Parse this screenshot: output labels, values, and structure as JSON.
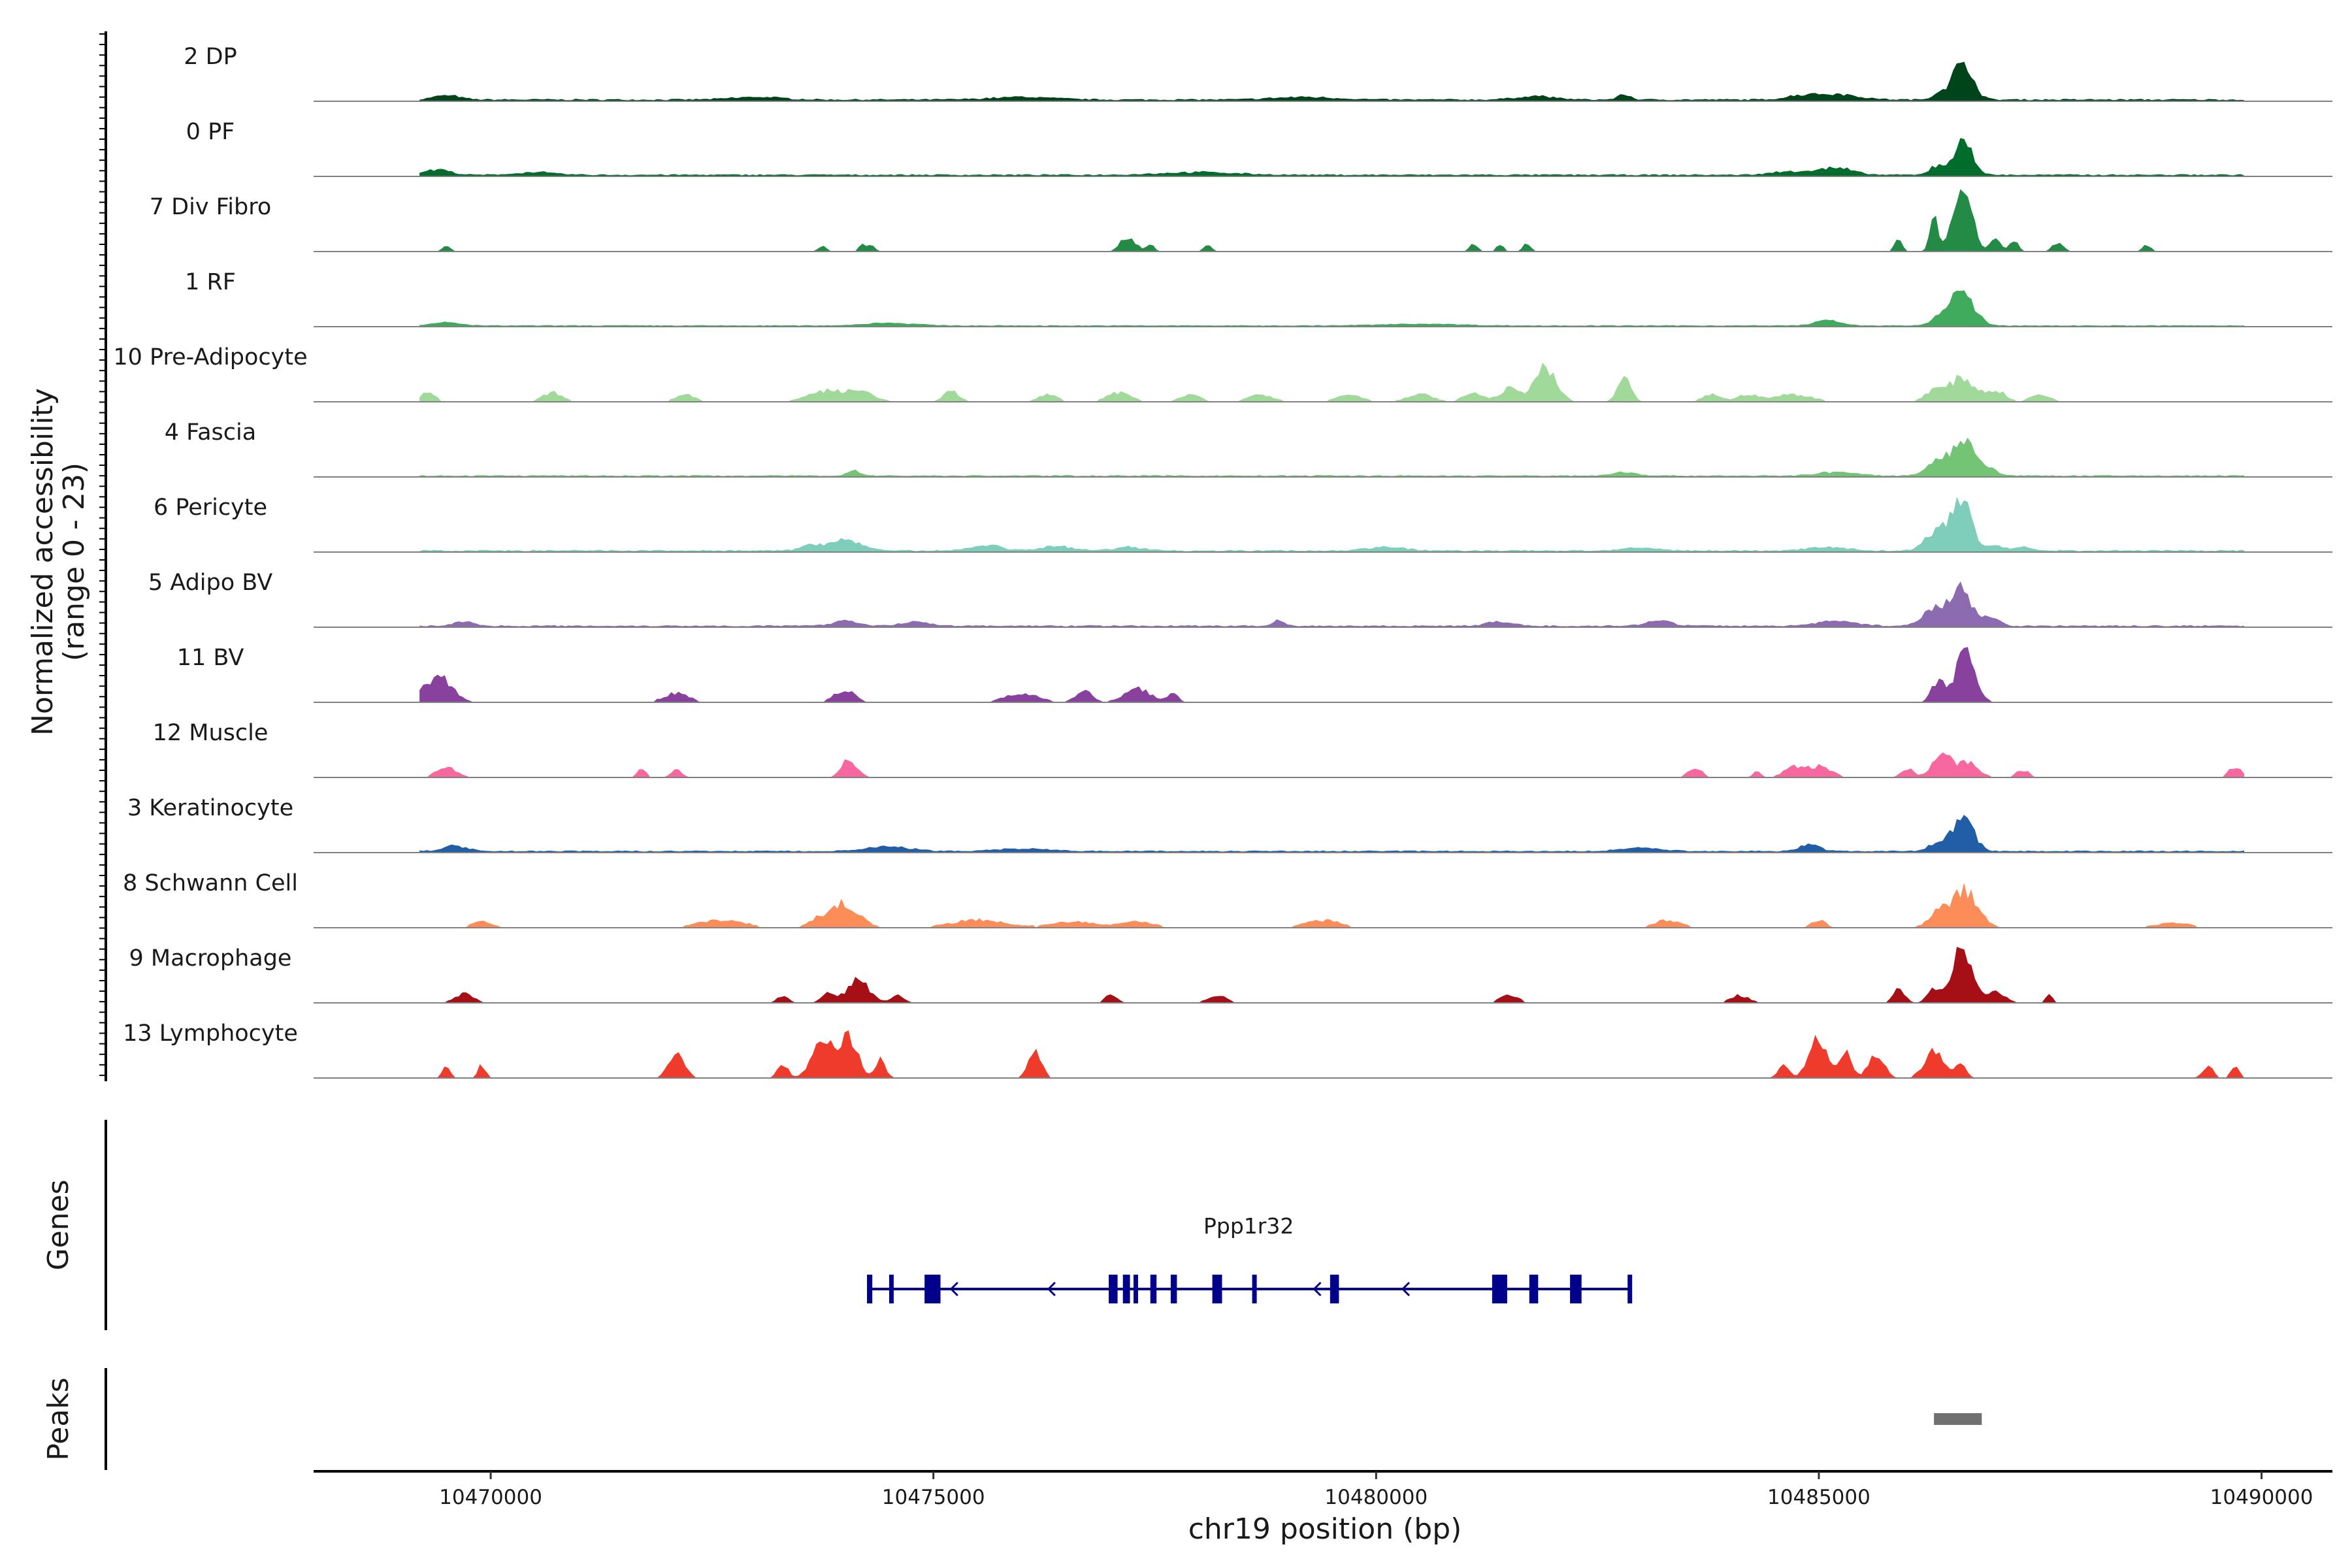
{
  "chart_data": {
    "type": "area",
    "title": "",
    "xlabel": "chr19 position (bp)",
    "ylabel": "Normalized accessibility",
    "ylabel_range": "(range 0 - 23)",
    "y_range": [
      0,
      23
    ],
    "xlim": [
      10468000,
      10490800
    ],
    "x_ticks": [
      10470000,
      10475000,
      10480000,
      10485000,
      10490000
    ],
    "x_tick_labels": [
      "10470000",
      "10475000",
      "10480000",
      "10485000",
      "10490000"
    ],
    "coverage_start": 10469200,
    "coverage_end": 10489800,
    "genes_label": "Genes",
    "peaks_label": "Peaks",
    "tracks": [
      {
        "name": "2 DP",
        "color": "#00441b",
        "noise": 0.8,
        "base": 0.4,
        "peaks": [
          [
            10486630,
            22,
            150
          ],
          [
            10486380,
            4,
            120
          ],
          [
            10485200,
            3,
            350
          ],
          [
            10484800,
            2,
            250
          ],
          [
            10482800,
            3,
            100
          ],
          [
            10481800,
            2,
            300
          ],
          [
            10479200,
            1.5,
            500
          ],
          [
            10476000,
            1.5,
            500
          ],
          [
            10473000,
            1.5,
            400
          ],
          [
            10469500,
            2.5,
            200
          ]
        ]
      },
      {
        "name": "0 PF",
        "color": "#006d2c",
        "noise": 0.7,
        "base": 0.4,
        "peaks": [
          [
            10486630,
            21,
            140
          ],
          [
            10486330,
            5,
            110
          ],
          [
            10485200,
            4,
            250
          ],
          [
            10484700,
            2,
            300
          ],
          [
            10469400,
            3,
            200
          ],
          [
            10470500,
            1.5,
            300
          ],
          [
            10478000,
            1.5,
            600
          ]
        ]
      },
      {
        "name": "7 Div Fibro",
        "color": "#238b45",
        "noise": 0,
        "base": 0,
        "peaks": [
          [
            10486620,
            34,
            150
          ],
          [
            10486300,
            19,
            60
          ],
          [
            10485900,
            7,
            60
          ],
          [
            10487000,
            9,
            70
          ],
          [
            10487200,
            6,
            70
          ],
          [
            10487700,
            5,
            80
          ],
          [
            10488700,
            4,
            60
          ],
          [
            10477200,
            8,
            120
          ],
          [
            10477450,
            4,
            60
          ],
          [
            10478100,
            4,
            60
          ],
          [
            10474300,
            3,
            60
          ],
          [
            10473750,
            3,
            60
          ],
          [
            10474200,
            4,
            60
          ],
          [
            10469500,
            3,
            60
          ],
          [
            10481100,
            4,
            60
          ],
          [
            10481400,
            4,
            60
          ],
          [
            10481700,
            4,
            60
          ]
        ]
      },
      {
        "name": "1 RF",
        "color": "#41ab5d",
        "noise": 0.4,
        "base": 0.3,
        "peaks": [
          [
            10486620,
            19,
            180
          ],
          [
            10486380,
            4,
            150
          ],
          [
            10485100,
            3,
            200
          ],
          [
            10469500,
            2,
            200
          ],
          [
            10474500,
            1.5,
            400
          ],
          [
            10480500,
            1,
            600
          ]
        ]
      },
      {
        "name": "10 Pre-Adipocyte",
        "color": "#a1d99b",
        "noise": 0,
        "base": 0,
        "peaks": [
          [
            10486620,
            13,
            200
          ],
          [
            10486300,
            6,
            150
          ],
          [
            10481900,
            18,
            180
          ],
          [
            10482800,
            14,
            100
          ],
          [
            10481500,
            7,
            150
          ],
          [
            10481100,
            5,
            150
          ],
          [
            10480500,
            4,
            200
          ],
          [
            10479700,
            4,
            200
          ],
          [
            10478700,
            4,
            200
          ],
          [
            10477900,
            4,
            150
          ],
          [
            10477100,
            5,
            200
          ],
          [
            10476300,
            4,
            150
          ],
          [
            10475200,
            6,
            120
          ],
          [
            10474200,
            5,
            200
          ],
          [
            10473800,
            6,
            300
          ],
          [
            10472200,
            4,
            150
          ],
          [
            10470700,
            5,
            150
          ],
          [
            10469300,
            6,
            100
          ],
          [
            10487000,
            6,
            150
          ],
          [
            10487500,
            4,
            150
          ],
          [
            10484700,
            4,
            300
          ],
          [
            10484200,
            4,
            150
          ],
          [
            10483800,
            4,
            150
          ]
        ]
      },
      {
        "name": "4 Fascia",
        "color": "#74c476",
        "noise": 0.6,
        "base": 0.3,
        "peaks": [
          [
            10486650,
            20,
            170
          ],
          [
            10486350,
            9,
            180
          ],
          [
            10486950,
            3,
            120
          ],
          [
            10485200,
            2,
            300
          ],
          [
            10474100,
            3,
            100
          ],
          [
            10482800,
            2,
            200
          ]
        ]
      },
      {
        "name": "6 Pericyte",
        "color": "#7fcdbb",
        "noise": 0.8,
        "base": 0.3,
        "peaks": [
          [
            10486620,
            30,
            150
          ],
          [
            10486350,
            12,
            180
          ],
          [
            10474000,
            6,
            250
          ],
          [
            10473600,
            3,
            150
          ],
          [
            10475600,
            3,
            250
          ],
          [
            10476400,
            2.5,
            250
          ],
          [
            10477200,
            2,
            250
          ],
          [
            10480100,
            2,
            300
          ],
          [
            10487000,
            3,
            120
          ],
          [
            10487300,
            2,
            150
          ],
          [
            10485100,
            2,
            300
          ],
          [
            10483000,
            1.5,
            300
          ]
        ]
      },
      {
        "name": "5 Adipo BV",
        "color": "#8c6bb1",
        "noise": 0.7,
        "base": 0.3,
        "peaks": [
          [
            10486600,
            21,
            170
          ],
          [
            10486300,
            9,
            180
          ],
          [
            10486950,
            5,
            120
          ],
          [
            10485200,
            3,
            300
          ],
          [
            10474000,
            3,
            200
          ],
          [
            10474800,
            2.5,
            200
          ],
          [
            10478900,
            3,
            100
          ],
          [
            10483200,
            3,
            200
          ],
          [
            10469700,
            2.5,
            150
          ],
          [
            10481400,
            2.5,
            200
          ]
        ]
      },
      {
        "name": "11 BV",
        "color": "#88419d",
        "noise": 0,
        "base": 0,
        "peaks": [
          [
            10486650,
            26,
            160
          ],
          [
            10486350,
            12,
            100
          ],
          [
            10469400,
            14,
            220
          ],
          [
            10472100,
            5,
            200
          ],
          [
            10474000,
            7,
            160
          ],
          [
            10476000,
            5,
            250
          ],
          [
            10476700,
            7,
            120
          ],
          [
            10477300,
            8,
            200
          ],
          [
            10477700,
            5,
            80
          ]
        ]
      },
      {
        "name": "12 Muscle",
        "color": "#f768a1",
        "noise": 0,
        "base": 0,
        "peaks": [
          [
            10486400,
            14,
            150
          ],
          [
            10486700,
            8,
            150
          ],
          [
            10486000,
            5,
            100
          ],
          [
            10485000,
            6,
            200
          ],
          [
            10484700,
            5,
            150
          ],
          [
            10484300,
            3,
            60
          ],
          [
            10483600,
            6,
            100
          ],
          [
            10487300,
            4,
            100
          ],
          [
            10489700,
            6,
            100
          ],
          [
            10474050,
            10,
            120
          ],
          [
            10469500,
            6,
            150
          ],
          [
            10471700,
            4,
            80
          ],
          [
            10472100,
            4,
            80
          ]
        ]
      },
      {
        "name": "3 Keratinocyte",
        "color": "#225ea8",
        "noise": 0.6,
        "base": 0.4,
        "peaks": [
          [
            10486630,
            19,
            160
          ],
          [
            10486350,
            5,
            140
          ],
          [
            10484900,
            4,
            150
          ],
          [
            10483000,
            2,
            300
          ],
          [
            10474500,
            2.5,
            350
          ],
          [
            10469600,
            3,
            200
          ],
          [
            10476000,
            1.5,
            400
          ]
        ]
      },
      {
        "name": "8 Schwann Cell",
        "color": "#fc8d59",
        "noise": 0.4,
        "base": 0,
        "peaks": [
          [
            10486650,
            20,
            200
          ],
          [
            10486350,
            8,
            150
          ],
          [
            10474000,
            13,
            220
          ],
          [
            10473700,
            4,
            150
          ],
          [
            10472600,
            4,
            350
          ],
          [
            10475500,
            4,
            400
          ],
          [
            10476600,
            3,
            350
          ],
          [
            10477300,
            3,
            250
          ],
          [
            10479400,
            4,
            250
          ],
          [
            10483300,
            4,
            200
          ],
          [
            10485000,
            4,
            100
          ],
          [
            10489000,
            2.5,
            250
          ],
          [
            10469900,
            3,
            150
          ]
        ]
      },
      {
        "name": "9 Macrophage",
        "color": "#a50f15",
        "noise": 0,
        "base": 0,
        "peaks": [
          [
            10486620,
            31,
            150
          ],
          [
            10486300,
            8,
            100
          ],
          [
            10485900,
            7,
            100
          ],
          [
            10487000,
            6,
            150
          ],
          [
            10487600,
            5,
            60
          ],
          [
            10474150,
            12,
            180
          ],
          [
            10473800,
            5,
            100
          ],
          [
            10473300,
            4,
            80
          ],
          [
            10474600,
            4,
            100
          ],
          [
            10469700,
            5,
            150
          ],
          [
            10477000,
            4,
            100
          ],
          [
            10478200,
            4,
            150
          ],
          [
            10481500,
            4,
            150
          ],
          [
            10484100,
            4,
            150
          ]
        ]
      },
      {
        "name": "13 Lymphocyte",
        "color": "#ef3b2c",
        "noise": 0,
        "base": 0,
        "peaks": [
          [
            10473750,
            24,
            160
          ],
          [
            10474050,
            22,
            140
          ],
          [
            10474400,
            10,
            80
          ],
          [
            10472100,
            14,
            120
          ],
          [
            10473300,
            8,
            80
          ],
          [
            10476150,
            16,
            100
          ],
          [
            10469500,
            7,
            60
          ],
          [
            10469900,
            7,
            60
          ],
          [
            10485000,
            21,
            150
          ],
          [
            10485300,
            14,
            100
          ],
          [
            10485650,
            13,
            120
          ],
          [
            10484600,
            8,
            80
          ],
          [
            10486300,
            15,
            150
          ],
          [
            10486600,
            7,
            80
          ],
          [
            10489400,
            7,
            80
          ],
          [
            10489700,
            7,
            60
          ]
        ]
      }
    ],
    "gene": {
      "name": "Ppp1r32",
      "start": 10474250,
      "end": 10482870,
      "strand": "-",
      "color": "#00008b",
      "exons": [
        [
          10474250,
          10474310
        ],
        [
          10474500,
          10474550
        ],
        [
          10474900,
          10475080
        ],
        [
          10476980,
          10477080
        ],
        [
          10477140,
          10477220
        ],
        [
          10477260,
          10477310
        ],
        [
          10477450,
          10477520
        ],
        [
          10477680,
          10477750
        ],
        [
          10478150,
          10478260
        ],
        [
          10478600,
          10478650
        ],
        [
          10479480,
          10479580
        ],
        [
          10481310,
          10481480
        ],
        [
          10481730,
          10481830
        ],
        [
          10482190,
          10482320
        ],
        [
          10482840,
          10482870
        ]
      ],
      "arrows": [
        10475200,
        10476300,
        10479300,
        10480300
      ]
    },
    "peaks_track": [
      {
        "start": 10486300,
        "end": 10486840,
        "color": "#707070"
      }
    ]
  }
}
